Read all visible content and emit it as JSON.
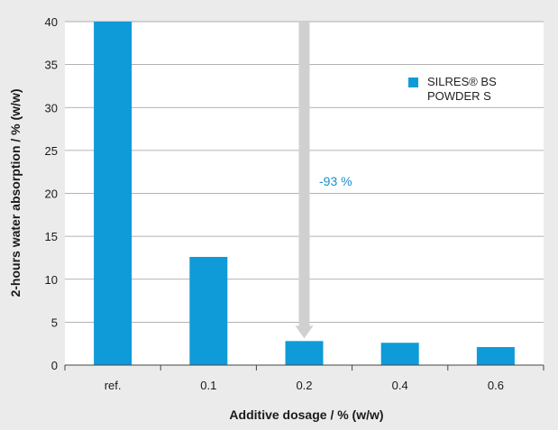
{
  "chart_data": {
    "type": "bar",
    "categories": [
      "ref.",
      "0.1",
      "0.2",
      "0.4",
      "0.6"
    ],
    "series": [
      {
        "name": "SILRES® BS POWDER S",
        "values": [
          40,
          12.6,
          2.8,
          2.6,
          2.1
        ]
      }
    ],
    "xlabel": "Additive dosage / % (w/w)",
    "ylabel": "2-hours water absorption / % (w/w)",
    "ylim": [
      0,
      40
    ],
    "yticks": [
      0,
      5,
      10,
      15,
      20,
      25,
      30,
      35,
      40
    ],
    "grid": "horizontal",
    "legend_position": "top-right",
    "legend_lines": [
      "SILRES® BS",
      "POWDER S"
    ],
    "annotation": "-93 %",
    "colors": {
      "bar": "#0f9bd7",
      "background": "#ebebeb",
      "plot": "#ffffff",
      "arrow": "#d0d0d0"
    }
  }
}
